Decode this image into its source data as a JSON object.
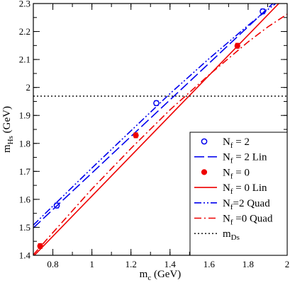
{
  "chart_data": {
    "type": "line",
    "xlabel": {
      "main": "m",
      "sub": "c",
      "unit": " (GeV)"
    },
    "ylabel": {
      "main": "m",
      "sub": "Hs",
      "unit": " (GeV)"
    },
    "xlim": [
      0.7,
      2.0
    ],
    "ylim": [
      1.4,
      2.3
    ],
    "x_ticks": [
      0.8,
      1.0,
      1.2,
      1.4,
      1.6,
      1.8,
      2.0
    ],
    "x_tick_labels": [
      "0.8",
      "1",
      "1.2",
      "1.4",
      "1.6",
      "1.8",
      "2"
    ],
    "y_ticks": [
      1.4,
      1.5,
      1.6,
      1.7,
      1.8,
      1.9,
      2.0,
      2.1,
      2.2,
      2.3
    ],
    "y_tick_labels": [
      "1.4",
      "1.5",
      "1.6",
      "1.7",
      "1.8",
      "1.9",
      "2",
      "2.1",
      "2.2",
      "2.3"
    ],
    "grid": false,
    "legend_position": "bottom-right",
    "series": [
      {
        "name": "N_f = 2",
        "legend_parts": [
          "N",
          "f",
          " = 2"
        ],
        "kind": "points",
        "marker": "open-circle",
        "color": "#0000ee",
        "points": [
          [
            0.82,
            1.578
          ],
          [
            1.33,
            1.944
          ],
          [
            1.875,
            2.272
          ]
        ],
        "errors": [
          0.009,
          0.009,
          0.009
        ]
      },
      {
        "name": "N_f = 2 Lin",
        "legend_parts": [
          "N",
          "f",
          " = 2 Lin"
        ],
        "kind": "line",
        "dash": "long-dash",
        "color": "#0000ee",
        "points": [
          [
            0.7,
            1.498
          ],
          [
            2.0,
            2.348
          ]
        ]
      },
      {
        "name": "N_f = 0",
        "legend_parts": [
          "N",
          "f",
          " = 0"
        ],
        "kind": "points",
        "marker": "filled-circle",
        "color": "#ee0000",
        "points": [
          [
            0.735,
            1.433
          ],
          [
            1.225,
            1.829
          ],
          [
            1.745,
            2.149
          ]
        ],
        "errors": [
          0.009,
          0.009,
          0.009
        ]
      },
      {
        "name": "N_f = 0 Lin",
        "legend_parts": [
          "N",
          "f",
          " = 0 Lin"
        ],
        "kind": "line",
        "dash": "solid",
        "color": "#ee0000",
        "points": [
          [
            0.7,
            1.396
          ],
          [
            2.0,
            2.331
          ]
        ]
      },
      {
        "name": "N_f=2 Quad",
        "legend_parts": [
          "N",
          "f",
          "=2 Quad"
        ],
        "kind": "line",
        "dash": "dash-dot-dot",
        "color": "#0000ee",
        "points": [
          [
            0.7,
            1.508
          ],
          [
            0.8,
            1.576
          ],
          [
            1.0,
            1.712
          ],
          [
            1.2,
            1.845
          ],
          [
            1.4,
            1.978
          ],
          [
            1.6,
            2.103
          ],
          [
            1.8,
            2.222
          ],
          [
            1.9,
            2.278
          ],
          [
            2.0,
            2.332
          ]
        ]
      },
      {
        "name": "N_f =0 Quad",
        "legend_parts": [
          "N",
          "f",
          " =0 Quad"
        ],
        "kind": "line",
        "dash": "dash-dot",
        "color": "#ee0000",
        "points": [
          [
            0.7,
            1.402
          ],
          [
            0.8,
            1.481
          ],
          [
            1.0,
            1.637
          ],
          [
            1.2,
            1.782
          ],
          [
            1.4,
            1.92
          ],
          [
            1.6,
            2.045
          ],
          [
            1.8,
            2.163
          ],
          [
            1.9,
            2.216
          ],
          [
            2.0,
            2.262
          ]
        ]
      },
      {
        "name": "m_Ds",
        "legend_parts": [
          "m",
          "Ds",
          ""
        ],
        "kind": "hline",
        "dash": "dotted",
        "color": "#000000",
        "y": 1.969
      }
    ]
  }
}
